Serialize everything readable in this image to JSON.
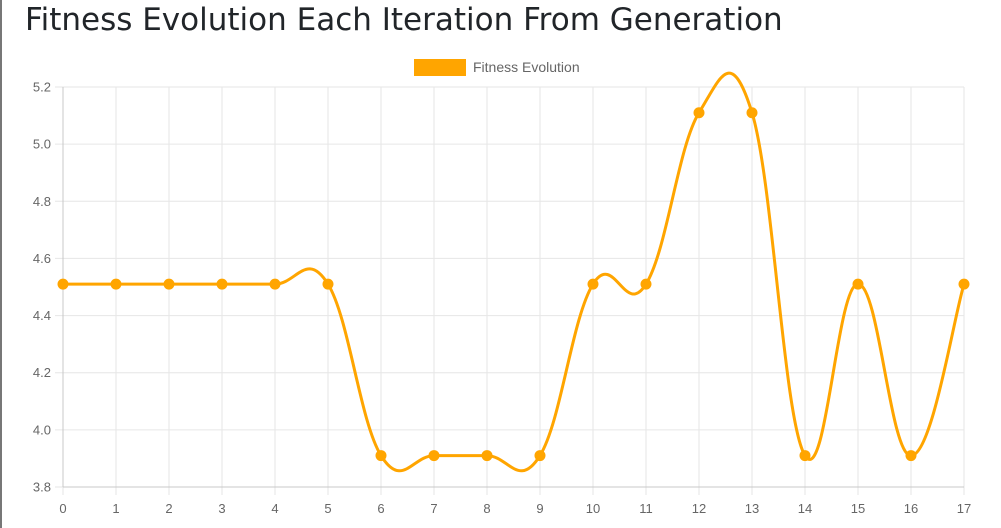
{
  "page": {
    "title": "Fitness Evolution Each Iteration From Generation"
  },
  "colors": {
    "series": "#ffa500",
    "grid": "#e6e6e6",
    "axis": "#c8c8c8",
    "text": "#666666"
  },
  "chart_data": {
    "type": "line",
    "title": "Fitness Evolution Each Iteration From Generation",
    "xlabel": "",
    "ylabel": "",
    "x": [
      0,
      1,
      2,
      3,
      4,
      5,
      6,
      7,
      8,
      9,
      10,
      11,
      12,
      13,
      14,
      15,
      16,
      17
    ],
    "x_ticks": [
      "0",
      "1",
      "2",
      "3",
      "4",
      "5",
      "6",
      "7",
      "8",
      "9",
      "10",
      "11",
      "12",
      "13",
      "14",
      "15",
      "16",
      "17"
    ],
    "ylim": [
      3.8,
      5.2
    ],
    "y_ticks": [
      "3.8",
      "4.0",
      "4.2",
      "4.4",
      "4.6",
      "4.8",
      "5.0",
      "5.2"
    ],
    "grid": true,
    "legend": "top-center",
    "curve": "smooth",
    "series": [
      {
        "name": "Fitness Evolution",
        "color": "#ffa500",
        "values": [
          4.51,
          4.51,
          4.51,
          4.51,
          4.51,
          4.51,
          3.91,
          3.91,
          3.91,
          3.91,
          4.51,
          4.51,
          5.11,
          5.11,
          3.91,
          4.51,
          3.91,
          4.51
        ]
      }
    ]
  }
}
